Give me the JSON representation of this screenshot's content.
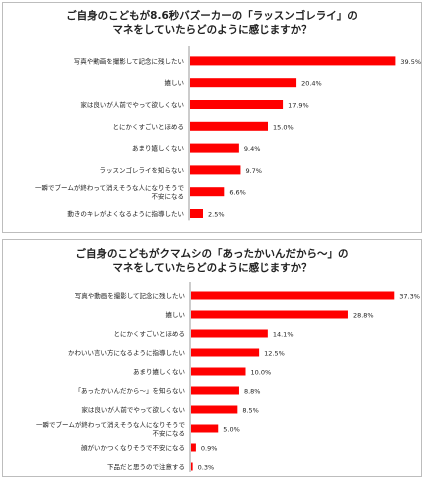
{
  "chart_data": [
    {
      "type": "bar",
      "orientation": "horizontal",
      "title_line1": "ご自身のこどもが8.6秒バズーカーの「ラッスンゴレライ」の",
      "title_line2": "マネをしていたらどのように感じますか？",
      "categories": [
        "写真や動画を撮影して記念に残したい",
        "嬉しい",
        "家は良いが人前でやって欲しくない",
        "とにかくすごいとほめる",
        "あまり嬉しくない",
        "ラッスンゴレライを知らない",
        "一瞬でブームが終わって消えそうな人になりそうで不安になる",
        "動きのキレがよくなるように指導したい"
      ],
      "category_lines": [
        [
          "写真や動画を撮影して記念に残したい"
        ],
        [
          "嬉しい"
        ],
        [
          "家は良いが人前でやって欲しくない"
        ],
        [
          "とにかくすごいとほめる"
        ],
        [
          "あまり嬉しくない"
        ],
        [
          "ラッスンゴレライを知らない"
        ],
        [
          "一瞬でブームが終わって消えそうな人になりそうで",
          "不安になる"
        ],
        [
          "動きのキレがよくなるように指導したい"
        ]
      ],
      "values": [
        39.5,
        20.4,
        17.9,
        15.0,
        9.4,
        9.7,
        6.6,
        2.5
      ],
      "value_labels": [
        "39.5%",
        "20.4%",
        "17.9%",
        "15.0%",
        "9.4%",
        "9.7%",
        "6.6%",
        "2.5%"
      ],
      "unit": "%",
      "bar_color": "#ff0000"
    },
    {
      "type": "bar",
      "orientation": "horizontal",
      "title_line1": "ご自身のこどもがクマムシの「あったかいんだから～」の",
      "title_line2": "マネをしていたらどのように感じますか？",
      "categories": [
        "写真や動画を撮影して記念に残したい",
        "嬉しい",
        "とにかくすごいとほめる",
        "かわいい言い方になるように指導したい",
        "あまり嬉しくない",
        "「あったかいんだから～」を知らない",
        "家は良いが人前でやって欲しくない",
        "一瞬でブームが終わって消えそうな人になりそうで不安になる",
        "顔がいかつくなりそうで不安になる",
        "下品だと思うので注意する"
      ],
      "category_lines": [
        [
          "写真や動画を撮影して記念に残したい"
        ],
        [
          "嬉しい"
        ],
        [
          "とにかくすごいとほめる"
        ],
        [
          "かわいい言い方になるように指導したい"
        ],
        [
          "あまり嬉しくない"
        ],
        [
          "「あったかいんだから～」を知らない"
        ],
        [
          "家は良いが人前でやって欲しくない"
        ],
        [
          "一瞬でブームが終わって消えそうな人になりそうで",
          "不安になる"
        ],
        [
          "顔がいかつくなりそうで不安になる"
        ],
        [
          "下品だと思うので注意する"
        ]
      ],
      "values": [
        37.3,
        28.8,
        14.1,
        12.5,
        10.0,
        8.8,
        8.5,
        5.0,
        0.9,
        0.3
      ],
      "value_labels": [
        "37.3%",
        "28.8%",
        "14.1%",
        "12.5%",
        "10.0%",
        "8.8%",
        "8.5%",
        "5.0%",
        "0.9%",
        "0.3%"
      ],
      "unit": "%",
      "bar_color": "#ff0000"
    }
  ]
}
